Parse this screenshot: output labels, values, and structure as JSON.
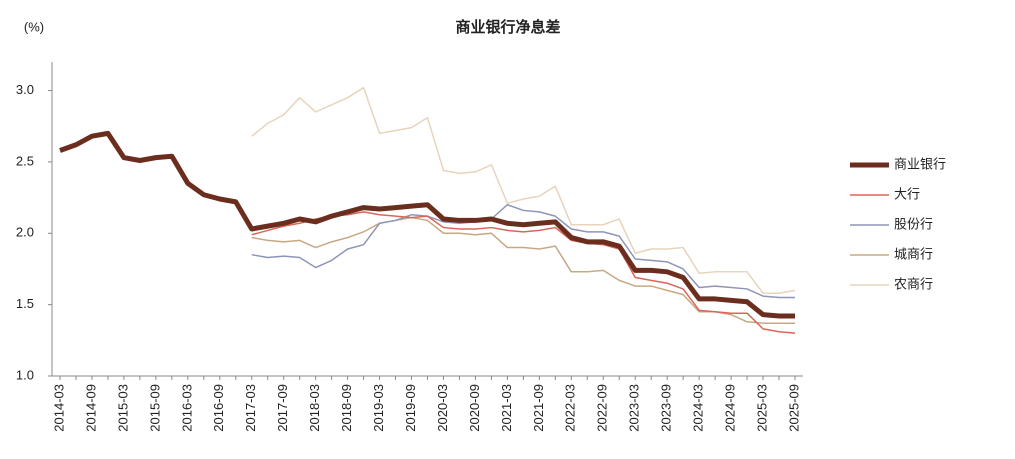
{
  "chart_data": {
    "type": "line",
    "title": "商业银行净息差",
    "y_unit": "(%)",
    "categories": [
      "2014-03",
      null,
      "2014-09",
      null,
      "2015-03",
      null,
      "2015-09",
      null,
      "2016-03",
      null,
      "2016-09",
      null,
      "2017-03",
      null,
      "2017-09",
      null,
      "2018-03",
      null,
      "2018-09",
      null,
      "2019-03",
      null,
      "2019-09",
      null,
      "2020-03",
      null,
      "2020-09",
      null,
      "2021-03",
      null,
      "2021-09",
      null,
      "2022-03",
      null,
      "2022-09",
      null,
      "2023-03",
      null,
      "2023-09",
      null,
      "2024-03",
      null,
      "2024-09",
      null,
      "2025-03",
      null,
      "2025-09"
    ],
    "ylim": [
      1,
      3.2
    ],
    "yticks": [
      {
        "value": 1,
        "label": "1.0"
      },
      {
        "value": 1.5,
        "label": "1.5"
      },
      {
        "value": 2,
        "label": "2.0"
      },
      {
        "value": 2.5,
        "label": "2.5"
      },
      {
        "value": 3,
        "label": "3.0"
      }
    ],
    "series": [
      {
        "name": "商业银行",
        "color": "#6b2e1e",
        "width": 5,
        "values": [
          2.58,
          2.62,
          2.68,
          2.7,
          2.53,
          2.51,
          2.53,
          2.54,
          2.35,
          2.27,
          2.24,
          2.22,
          2.03,
          2.05,
          2.07,
          2.1,
          2.08,
          2.12,
          2.15,
          2.18,
          2.17,
          2.18,
          2.19,
          2.2,
          2.1,
          2.09,
          2.09,
          2.1,
          2.07,
          2.06,
          2.07,
          2.08,
          1.97,
          1.94,
          1.94,
          1.91,
          1.74,
          1.74,
          1.73,
          1.69,
          1.54,
          1.54,
          1.53,
          1.52,
          1.43,
          1.42,
          1.42
        ]
      },
      {
        "name": "大行",
        "color": "#d9665a",
        "width": 1.5,
        "values": [
          null,
          null,
          null,
          null,
          null,
          null,
          null,
          null,
          null,
          null,
          null,
          null,
          1.99,
          2.02,
          2.05,
          2.07,
          2.1,
          2.12,
          2.13,
          2.15,
          2.13,
          2.12,
          2.11,
          2.12,
          2.04,
          2.03,
          2.03,
          2.04,
          2.02,
          2.01,
          2.02,
          2.04,
          1.95,
          1.93,
          1.92,
          1.89,
          1.69,
          1.67,
          1.65,
          1.61,
          1.46,
          1.45,
          1.44,
          1.44,
          1.33,
          1.31,
          1.3
        ]
      },
      {
        "name": "股份行",
        "color": "#8e95b8",
        "width": 1.5,
        "values": [
          null,
          null,
          null,
          null,
          null,
          null,
          null,
          null,
          null,
          null,
          null,
          null,
          1.85,
          1.83,
          1.84,
          1.83,
          1.76,
          1.81,
          1.89,
          1.92,
          2.07,
          2.09,
          2.13,
          2.12,
          2.08,
          2.07,
          2.08,
          2.1,
          2.2,
          2.16,
          2.15,
          2.12,
          2.03,
          2.01,
          2.01,
          1.98,
          1.82,
          1.81,
          1.8,
          1.75,
          1.62,
          1.63,
          1.62,
          1.61,
          1.56,
          1.55,
          1.55
        ]
      },
      {
        "name": "城商行",
        "color": "#c8a882",
        "width": 1.5,
        "values": [
          null,
          null,
          null,
          null,
          null,
          null,
          null,
          null,
          null,
          null,
          null,
          null,
          1.97,
          1.95,
          1.94,
          1.95,
          1.9,
          1.94,
          1.97,
          2.01,
          2.07,
          2.09,
          2.11,
          2.09,
          2.0,
          2.0,
          1.99,
          2.0,
          1.9,
          1.9,
          1.89,
          1.91,
          1.73,
          1.73,
          1.74,
          1.67,
          1.63,
          1.63,
          1.6,
          1.57,
          1.45,
          1.45,
          1.43,
          1.38,
          1.37,
          1.37,
          1.37
        ]
      },
      {
        "name": "农商行",
        "color": "#e8d4bc",
        "width": 1.5,
        "values": [
          null,
          null,
          null,
          null,
          null,
          null,
          null,
          null,
          null,
          null,
          null,
          null,
          2.68,
          2.77,
          2.83,
          2.95,
          2.85,
          2.9,
          2.95,
          3.02,
          2.7,
          2.72,
          2.74,
          2.81,
          2.44,
          2.42,
          2.43,
          2.48,
          2.21,
          2.24,
          2.26,
          2.33,
          2.06,
          2.06,
          2.06,
          2.1,
          1.86,
          1.89,
          1.89,
          1.9,
          1.72,
          1.73,
          1.73,
          1.73,
          1.58,
          1.58,
          1.6
        ]
      }
    ]
  }
}
